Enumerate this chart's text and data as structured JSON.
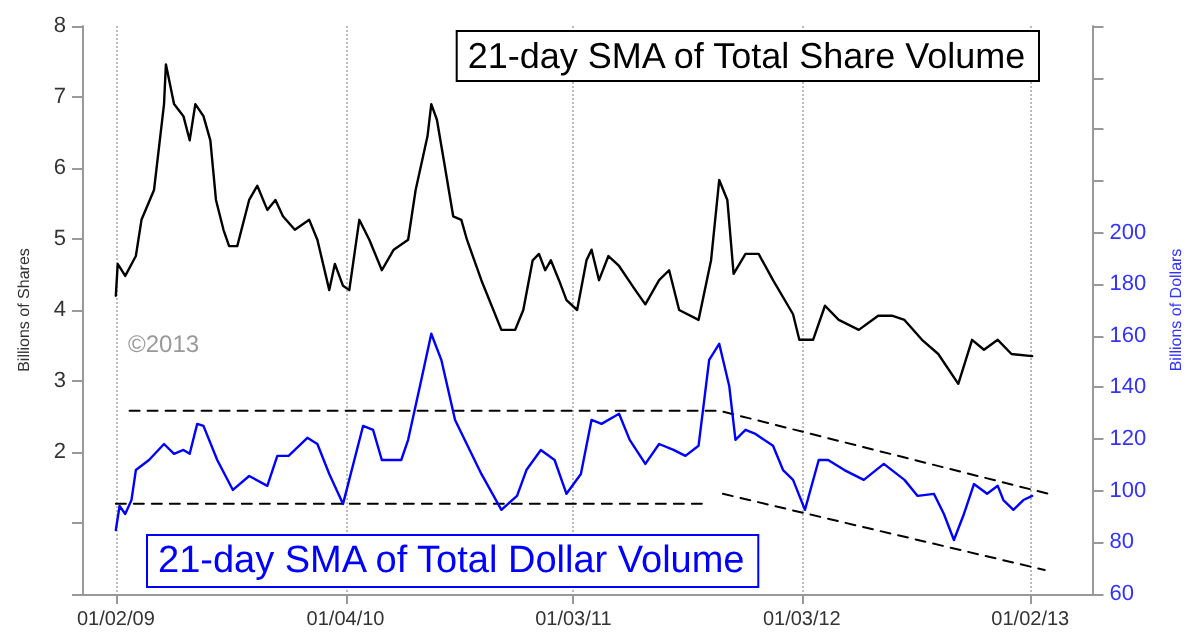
{
  "chart_data": {
    "type": "line",
    "ylabel": "Billions of Shares",
    "y2label": "Billions of Dollars",
    "annotations": [
      "©2013"
    ],
    "xlim": [
      "2008-11-09",
      "2013-04-13"
    ],
    "xticks": [
      {
        "value": "2009-01-02",
        "label": "01/02/09"
      },
      {
        "value": "2010-01-04",
        "label": "01/04/10"
      },
      {
        "value": "2011-01-03",
        "label": "01/03/11"
      },
      {
        "value": "2012-01-03",
        "label": "01/03/12"
      },
      {
        "value": "2013-01-02",
        "label": "01/02/13"
      }
    ],
    "ylim": [
      0,
      8
    ],
    "yticks": [
      {
        "value": 0,
        "label": null
      },
      {
        "value": 1,
        "label": null
      },
      2,
      3,
      4,
      5,
      6,
      7,
      8
    ],
    "y2lim": [
      60,
      280
    ],
    "y2ticks": [
      60,
      80,
      100,
      120,
      140,
      160,
      180,
      200,
      {
        "value": 220,
        "label": null
      },
      {
        "value": 240,
        "label": null
      },
      {
        "value": 260,
        "label": null
      },
      {
        "value": 280,
        "label": null
      }
    ],
    "grid": "x",
    "marker": "none",
    "line_style": "solid",
    "series": [
      {
        "name": "21-day SMA of Total Share Volume",
        "color": "#000000",
        "x": [
          "2009-01-02",
          "2009-01-05",
          "2009-01-17",
          "2009-02-03",
          "2009-02-12",
          "2009-03-04",
          "2009-03-20",
          "2009-03-23",
          "2009-04-05",
          "2009-04-20",
          "2009-04-30",
          "2009-05-09",
          "2009-05-22",
          "2009-06-02",
          "2009-06-11",
          "2009-06-23",
          "2009-07-02",
          "2009-07-15",
          "2009-08-03",
          "2009-08-16",
          "2009-09-01",
          "2009-09-14",
          "2009-09-26",
          "2009-10-15",
          "2009-11-07",
          "2009-11-20",
          "2009-12-09",
          "2009-12-18",
          "2009-12-31",
          "2010-01-10",
          "2010-01-26",
          "2010-02-11",
          "2010-03-03",
          "2010-03-22",
          "2010-04-14",
          "2010-04-26",
          "2010-05-15",
          "2010-05-21",
          "2010-05-30",
          "2010-06-10",
          "2010-06-25",
          "2010-07-08",
          "2010-07-17",
          "2010-08-09",
          "2010-09-10",
          "2010-10-02",
          "2010-10-15",
          "2010-10-30",
          "2010-11-09",
          "2010-11-19",
          "2010-11-28",
          "2010-12-11",
          "2010-12-23",
          "2011-01-09",
          "2011-01-24",
          "2011-02-01",
          "2011-02-13",
          "2011-02-28",
          "2011-03-17",
          "2011-04-12",
          "2011-04-28",
          "2011-05-20",
          "2011-06-05",
          "2011-06-21",
          "2011-07-22",
          "2011-08-11",
          "2011-08-24",
          "2011-09-06",
          "2011-09-16",
          "2011-10-05",
          "2011-10-26",
          "2011-11-18",
          "2011-12-20",
          "2011-12-30",
          "2012-01-21",
          "2012-02-09",
          "2012-03-02",
          "2012-04-03",
          "2012-05-04",
          "2012-05-26",
          "2012-06-15",
          "2012-07-13",
          "2012-08-08",
          "2012-09-09",
          "2012-10-01",
          "2012-10-20",
          "2012-11-11",
          "2012-12-03",
          "2013-01-05"
        ],
        "values": [
          4.2,
          4.65,
          4.48,
          4.76,
          5.27,
          5.69,
          6.9,
          7.46,
          6.9,
          6.73,
          6.39,
          6.9,
          6.73,
          6.39,
          5.55,
          5.13,
          4.9,
          4.9,
          5.55,
          5.75,
          5.41,
          5.55,
          5.32,
          5.13,
          5.27,
          4.99,
          4.28,
          4.65,
          4.34,
          4.28,
          5.27,
          4.99,
          4.56,
          4.85,
          4.99,
          5.69,
          6.45,
          6.9,
          6.68,
          6.11,
          5.32,
          5.27,
          4.99,
          4.42,
          3.72,
          3.72,
          4.0,
          4.7,
          4.79,
          4.56,
          4.7,
          4.42,
          4.14,
          4.0,
          4.7,
          4.85,
          4.42,
          4.76,
          4.62,
          4.28,
          4.08,
          4.42,
          4.56,
          4.0,
          3.86,
          4.7,
          5.83,
          5.55,
          4.51,
          4.79,
          4.79,
          4.42,
          3.94,
          3.58,
          3.58,
          4.06,
          3.86,
          3.72,
          3.92,
          3.92,
          3.86,
          3.58,
          3.38,
          2.96,
          3.58,
          3.44,
          3.58,
          3.38,
          3.35
        ]
      },
      {
        "name": "21-day SMA of Total Dollar Volume",
        "color": "#0000ff",
        "axis": "y2",
        "x": [
          "2009-01-02",
          "2009-01-08",
          "2009-01-17",
          "2009-01-27",
          "2009-02-03",
          "2009-02-24",
          "2009-03-20",
          "2009-04-05",
          "2009-04-20",
          "2009-04-30",
          "2009-05-12",
          "2009-05-22",
          "2009-06-13",
          "2009-07-08",
          "2009-08-03",
          "2009-09-01",
          "2009-09-17",
          "2009-10-05",
          "2009-11-04",
          "2009-11-20",
          "2009-12-09",
          "2009-12-31",
          "2010-02-01",
          "2010-02-17",
          "2010-03-03",
          "2010-04-03",
          "2010-04-14",
          "2010-05-05",
          "2010-05-21",
          "2010-06-06",
          "2010-06-28",
          "2010-08-09",
          "2010-09-10",
          "2010-10-05",
          "2010-10-20",
          "2010-11-12",
          "2010-12-04",
          "2010-12-23",
          "2011-01-15",
          "2011-02-01",
          "2011-02-17",
          "2011-03-17",
          "2011-04-03",
          "2011-04-28",
          "2011-05-20",
          "2011-06-12",
          "2011-07-01",
          "2011-07-22",
          "2011-08-08",
          "2011-08-24",
          "2011-09-09",
          "2011-09-19",
          "2011-10-05",
          "2011-10-21",
          "2011-11-18",
          "2011-12-04",
          "2011-12-20",
          "2012-01-08",
          "2012-01-30",
          "2012-02-14",
          "2012-03-11",
          "2012-04-11",
          "2012-05-13",
          "2012-06-15",
          "2012-07-06",
          "2012-08-01",
          "2012-08-17",
          "2012-09-02",
          "2012-09-18",
          "2012-10-04",
          "2012-10-25",
          "2012-11-11",
          "2012-11-20",
          "2012-12-06",
          "2012-12-22",
          "2013-01-05"
        ],
        "values": [
          84.8,
          94.1,
          91,
          96.4,
          108,
          111.9,
          118.1,
          114.3,
          115.8,
          114.3,
          125.9,
          125.1,
          111.9,
          100.3,
          105.7,
          101.9,
          113.5,
          113.5,
          120.5,
          118.1,
          106.5,
          94.9,
          125.1,
          123.6,
          111.9,
          111.9,
          119.7,
          142.9,
          160.8,
          150.7,
          127.4,
          106.5,
          92.6,
          98,
          108,
          115.8,
          111.9,
          98.8,
          106.5,
          127.4,
          125.9,
          129.8,
          119.7,
          110.4,
          118.1,
          115.8,
          113.5,
          117.4,
          150.7,
          156.9,
          140.6,
          119.7,
          123.6,
          122,
          117.4,
          108,
          104.2,
          92.6,
          111.9,
          111.9,
          108,
          104.2,
          110.4,
          104.2,
          98,
          98.8,
          91,
          80.9,
          91,
          102.6,
          98.8,
          101.9,
          96.4,
          92.6,
          96.4,
          98
        ]
      },
      {
        "color": "#000000",
        "axis": "y2",
        "line_style": "dashed",
        "x": [
          "2009-01-24",
          "2011-08-24",
          "2013-01-31"
        ],
        "values": [
          131,
          131,
          98.8
        ]
      },
      {
        "color": "#000000",
        "axis": "y2",
        "line_style": "dashed",
        "x": [
          "2009-01-02",
          "2011-07-28"
        ],
        "values": [
          95,
          95
        ]
      },
      {
        "color": "#000000",
        "axis": "y2",
        "line_style": "dashed",
        "x": [
          "2011-08-30",
          "2013-01-25"
        ],
        "values": [
          98.8,
          69.3
        ]
      }
    ]
  }
}
